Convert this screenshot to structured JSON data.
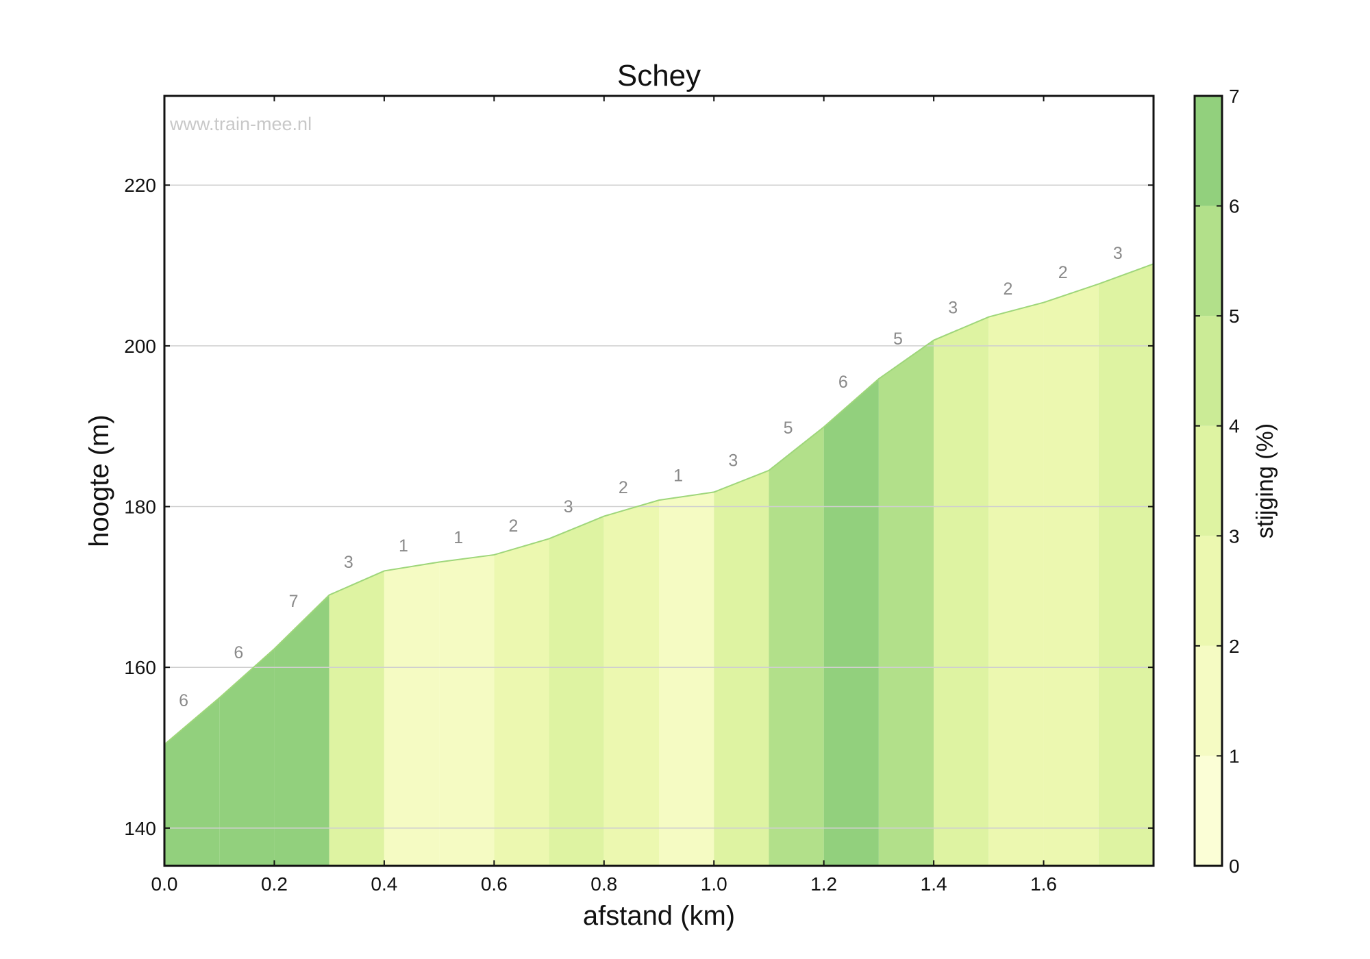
{
  "chart_data": {
    "type": "area",
    "title": "Schey",
    "xlabel": "afstand (km)",
    "ylabel": "hoogte (m)",
    "watermark": "www.train-mee.nl",
    "xlim": [
      0.0,
      1.8
    ],
    "ylim": [
      135.3,
      231.1
    ],
    "xticks": [
      "0.0",
      "0.2",
      "0.4",
      "0.6",
      "0.8",
      "1.0",
      "1.2",
      "1.4",
      "1.6"
    ],
    "yticks": [
      "140",
      "160",
      "180",
      "200",
      "220"
    ],
    "grid": "horizontal",
    "x": [
      0.0,
      0.1,
      0.2,
      0.3,
      0.4,
      0.5,
      0.6,
      0.7,
      0.8,
      0.9,
      1.0,
      1.1,
      1.2,
      1.3,
      1.4,
      1.5,
      1.6,
      1.7,
      1.8
    ],
    "elevation": [
      150.4,
      156.2,
      162.3,
      169.0,
      172.0,
      173.1,
      174.0,
      176.0,
      178.8,
      180.8,
      181.8,
      184.5,
      189.9,
      195.9,
      200.7,
      203.6,
      205.4,
      207.7,
      210.2
    ],
    "segment_grade": [
      6,
      6,
      7,
      3,
      1,
      1,
      2,
      3,
      2,
      1,
      3,
      5,
      6,
      5,
      3,
      2,
      2,
      3
    ],
    "grade_labels": [
      "6",
      "6",
      "7",
      "3",
      "1",
      "1",
      "2",
      "3",
      "2",
      "1",
      "3",
      "5",
      "6",
      "5",
      "3",
      "2",
      "2",
      "3"
    ],
    "colorbar": {
      "label": "stijging (%)",
      "range": [
        0,
        7
      ],
      "ticks": [
        "0",
        "1",
        "2",
        "3",
        "4",
        "5",
        "6",
        "7"
      ],
      "colors": [
        "#fbfed6",
        "#f5fbc3",
        "#ecf8b0",
        "#def3a2",
        "#cbeb96",
        "#b2e08a",
        "#92d07d"
      ]
    }
  }
}
